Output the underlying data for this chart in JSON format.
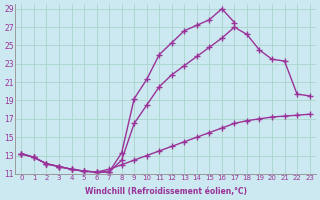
{
  "xlabel": "Windchill (Refroidissement éolien,°C)",
  "bg_color": "#cce8f0",
  "grid_color": "#aad4cc",
  "line_color": "#993399",
  "xlim": [
    -0.5,
    23.5
  ],
  "ylim": [
    11,
    29.5
  ],
  "xticks": [
    0,
    1,
    2,
    3,
    4,
    5,
    6,
    7,
    8,
    9,
    10,
    11,
    12,
    13,
    14,
    15,
    16,
    17,
    18,
    19,
    20,
    21,
    22,
    23
  ],
  "yticks": [
    11,
    13,
    15,
    17,
    19,
    21,
    23,
    25,
    27,
    29
  ],
  "lines": [
    {
      "x": [
        0,
        1,
        2,
        3,
        4,
        5,
        6,
        7,
        8,
        9,
        10,
        11,
        12,
        13,
        14,
        15,
        16,
        17
      ],
      "y": [
        13.2,
        12.8,
        12.1,
        11.8,
        11.5,
        11.3,
        11.2,
        11.2,
        13.3,
        19.2,
        21.3,
        24.0,
        25.3,
        26.6,
        27.2,
        27.8,
        29.0,
        27.5
      ]
    },
    {
      "x": [
        0,
        1,
        2,
        3,
        4,
        5,
        6,
        7,
        8,
        9,
        10,
        11,
        12,
        13,
        14,
        15,
        16,
        17,
        18,
        19,
        20,
        21,
        22,
        23
      ],
      "y": [
        13.2,
        12.8,
        12.1,
        11.8,
        11.5,
        11.3,
        11.2,
        11.2,
        12.5,
        16.5,
        18.5,
        20.5,
        21.8,
        22.8,
        23.8,
        24.8,
        25.8,
        27.0,
        26.2,
        24.5,
        23.5,
        23.3,
        19.7,
        19.5
      ]
    },
    {
      "x": [
        0,
        1,
        2,
        3,
        4,
        5,
        6,
        7,
        8,
        9,
        10,
        11,
        12,
        13,
        14,
        15,
        16,
        17,
        18,
        19,
        20,
        21,
        22,
        23
      ],
      "y": [
        13.2,
        12.8,
        12.1,
        11.8,
        11.5,
        11.3,
        11.2,
        11.5,
        12.0,
        12.5,
        13.0,
        13.5,
        14.0,
        14.5,
        15.0,
        15.5,
        16.0,
        16.5,
        16.8,
        17.0,
        17.2,
        17.3,
        17.4,
        17.5
      ]
    }
  ],
  "markersize": 2.5,
  "linewidth": 1.0
}
